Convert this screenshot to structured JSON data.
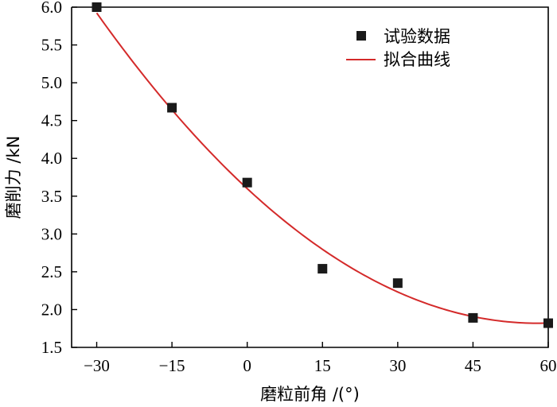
{
  "chart_data": {
    "type": "scatter",
    "xlabel": "磨粒前角 /(°)",
    "ylabel": "磨削力 /kN",
    "xlim": [
      -35,
      60
    ],
    "ylim": [
      1.5,
      6.0
    ],
    "x_ticks": [
      -30,
      -15,
      0,
      15,
      30,
      45,
      60
    ],
    "x_tick_labels": [
      "−30",
      "−15",
      "0",
      "15",
      "30",
      "45",
      "60"
    ],
    "y_ticks": [
      1.5,
      2.0,
      2.5,
      3.0,
      3.5,
      4.0,
      4.5,
      5.0,
      5.5,
      6.0
    ],
    "y_tick_labels": [
      "1.5",
      "2.0",
      "2.5",
      "3.0",
      "3.5",
      "4.0",
      "4.5",
      "5.0",
      "5.5",
      "6.0"
    ],
    "grid": false,
    "legend_position": "top-right",
    "series": [
      {
        "name": "试验数据",
        "kind": "scatter",
        "marker": "square",
        "color": "#1a1a1a",
        "x": [
          -30,
          -15,
          0,
          15,
          30,
          45,
          60
        ],
        "y": [
          6.0,
          4.67,
          3.68,
          2.54,
          2.35,
          1.89,
          1.82
        ]
      },
      {
        "name": "拟合曲线",
        "kind": "line",
        "color": "#d42a2a",
        "fit": "quadratic",
        "x_range": [
          -30,
          60
        ],
        "coefficients": [
          3.6,
          -0.0615,
          0.000531
        ]
      }
    ]
  }
}
